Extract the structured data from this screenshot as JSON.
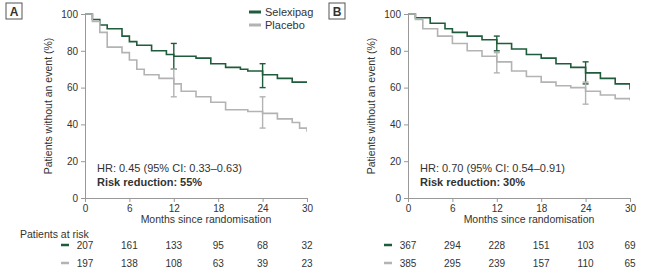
{
  "chart_data": [
    {
      "type": "line",
      "panel_label": "A",
      "x_label": "Months since randomisation",
      "y_label": "Patients without an event (%)",
      "xlim": [
        0,
        30
      ],
      "ylim": [
        0,
        100
      ],
      "xticks": [
        0,
        6,
        12,
        18,
        24,
        30
      ],
      "yticks": [
        0,
        20,
        40,
        60,
        80,
        100
      ],
      "legend": "top-right",
      "annotations": [
        "HR: 0.45 (95% CI: 0.33–0.63)",
        "Risk reduction: 55%"
      ],
      "at_risk_title": "Patients at risk",
      "series": [
        {
          "name": "Selexipag",
          "color": "#1f5c3b",
          "line_style": "step",
          "x": [
            0,
            1,
            2,
            3,
            5,
            6,
            7,
            9,
            11,
            12,
            15,
            17,
            19,
            21,
            22,
            24,
            26,
            28,
            30
          ],
          "values": [
            100,
            97,
            94,
            92,
            88,
            85,
            83,
            80,
            78,
            77,
            76,
            73,
            71,
            70,
            69,
            67,
            65,
            63,
            63
          ],
          "ci_x": [
            12,
            24
          ],
          "ci_low": [
            70,
            60
          ],
          "ci_high": [
            84,
            73
          ],
          "at_risk": [
            207,
            161,
            133,
            95,
            68,
            32
          ]
        },
        {
          "name": "Placebo",
          "color": "#b3b3b3",
          "line_style": "step",
          "x": [
            0,
            1,
            2,
            3,
            5,
            6,
            7,
            8,
            10,
            12,
            13,
            15,
            17,
            19,
            22,
            24,
            26,
            28,
            29,
            30
          ],
          "values": [
            100,
            96,
            90,
            82,
            79,
            75,
            70,
            67,
            65,
            62,
            58,
            55,
            52,
            48,
            47,
            46,
            43,
            41,
            38,
            36
          ],
          "ci_x": [
            12,
            24
          ],
          "ci_low": [
            55,
            38
          ],
          "ci_high": [
            70,
            55
          ],
          "at_risk": [
            197,
            138,
            108,
            63,
            39,
            23
          ]
        }
      ]
    },
    {
      "type": "line",
      "panel_label": "B",
      "x_label": "Months since randomisation",
      "y_label": "Patients without an event (%)",
      "xlim": [
        0,
        30
      ],
      "ylim": [
        0,
        100
      ],
      "xticks": [
        0,
        6,
        12,
        18,
        24,
        30
      ],
      "yticks": [
        0,
        20,
        40,
        60,
        80,
        100
      ],
      "annotations": [
        "HR: 0.70 (95% CI: 0.54–0.91)",
        "Risk reduction: 30%"
      ],
      "series": [
        {
          "color": "#1f5c3b",
          "line_style": "step",
          "x": [
            0,
            1,
            3,
            5,
            6,
            8,
            10,
            12,
            14,
            16,
            18,
            20,
            22,
            24,
            26,
            28,
            30
          ],
          "values": [
            100,
            98,
            95,
            92,
            90,
            88,
            86,
            84,
            81,
            78,
            76,
            73,
            71,
            68,
            65,
            62,
            59
          ],
          "ci_x": [
            12,
            24
          ],
          "ci_low": [
            80,
            62
          ],
          "ci_high": [
            88,
            74
          ],
          "at_risk": [
            367,
            294,
            228,
            151,
            103,
            69
          ]
        },
        {
          "color": "#b3b3b3",
          "line_style": "step",
          "x": [
            0,
            1,
            2,
            4,
            6,
            8,
            10,
            12,
            14,
            16,
            18,
            20,
            22,
            24,
            26,
            28,
            30
          ],
          "values": [
            100,
            97,
            92,
            88,
            84,
            80,
            77,
            74,
            69,
            66,
            63,
            61,
            60,
            58,
            56,
            54,
            53
          ],
          "ci_x": [
            12,
            24
          ],
          "ci_low": [
            68,
            51
          ],
          "ci_high": [
            79,
            63
          ],
          "at_risk": [
            385,
            295,
            239,
            157,
            110,
            65
          ]
        }
      ]
    }
  ]
}
